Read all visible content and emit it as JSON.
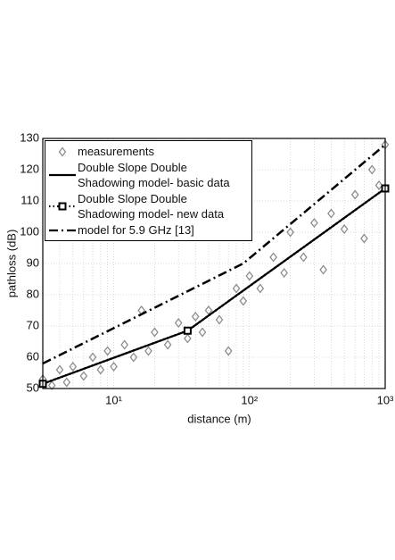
{
  "chart_data": {
    "type": "line",
    "xlabel": "distance (m)",
    "ylabel": "pathloss (dB)",
    "xscale": "log",
    "xlim": [
      3,
      1000
    ],
    "ylim": [
      50,
      130
    ],
    "xticks": [
      {
        "value": 10,
        "label": "10¹"
      },
      {
        "value": 100,
        "label": "10²"
      },
      {
        "value": 1000,
        "label": "10³"
      }
    ],
    "xminorticks": [
      4,
      5,
      6,
      7,
      8,
      9,
      20,
      30,
      40,
      50,
      60,
      70,
      80,
      90,
      200,
      300,
      400,
      500,
      600,
      700,
      800,
      900
    ],
    "yticks": [
      50,
      60,
      70,
      80,
      90,
      100,
      110,
      120,
      130
    ],
    "grid": true,
    "legend": "upper left",
    "series": [
      {
        "name": "measurements",
        "color": "#8c8c8c",
        "marker": "diamond",
        "line": "none",
        "x": [
          3,
          3.5,
          4,
          4.5,
          5,
          6,
          7,
          8,
          9,
          10,
          12,
          14,
          16,
          18,
          20,
          25,
          30,
          35,
          40,
          45,
          50,
          60,
          70,
          80,
          90,
          100,
          120,
          150,
          180,
          200,
          250,
          300,
          350,
          400,
          500,
          600,
          700,
          800,
          900,
          1000
        ],
        "values": [
          53,
          51,
          56,
          52,
          57,
          54,
          60,
          56,
          62,
          57,
          64,
          60,
          75,
          62,
          68,
          64,
          71,
          66,
          73,
          68,
          75,
          72,
          62,
          82,
          78,
          86,
          82,
          92,
          87,
          100,
          92,
          103,
          88,
          106,
          101,
          112,
          98,
          120,
          115,
          128
        ]
      },
      {
        "name": "Double Slope Double\nShadowing model- basic data",
        "color": "#000000",
        "line": "solid",
        "x": [
          3,
          35,
          1000
        ],
        "values": [
          51.5,
          68.5,
          114
        ]
      },
      {
        "name": "Double Slope Double\nShadowing model- new data",
        "color": "#000000",
        "line": "dotted",
        "marker": "square",
        "x": [
          3,
          35,
          1000
        ],
        "values": [
          51.5,
          68.5,
          114
        ]
      },
      {
        "name": "model for 5.9 GHz [13]",
        "color": "#000000",
        "line": "dashdot",
        "x": [
          3,
          90,
          1000
        ],
        "values": [
          58,
          90,
          128
        ]
      }
    ]
  }
}
